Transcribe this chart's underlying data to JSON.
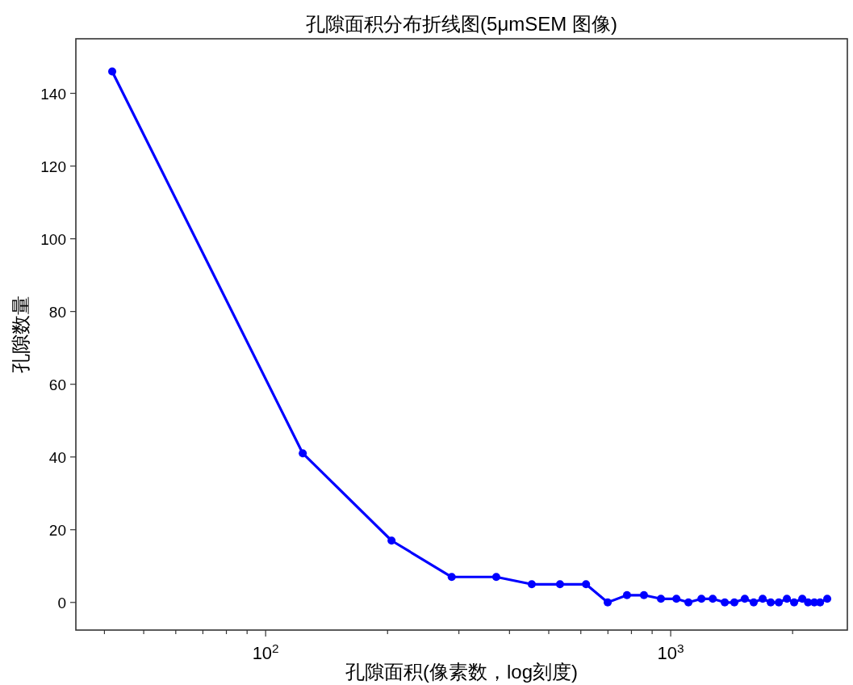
{
  "chart_data": {
    "type": "line",
    "title": "孔隙面积分布折线图(5μmSEM 图像)",
    "xlabel": "孔隙面积(像素数，log刻度)",
    "ylabel": "孔隙数量",
    "log": "x",
    "marker": "circle",
    "line_style": "solid",
    "grid": false,
    "xlim": [
      34,
      2730
    ],
    "ylim": [
      -7.6,
      155
    ],
    "xticks": [
      {
        "value": 40,
        "label": null
      },
      {
        "value": 50,
        "label": null
      },
      {
        "value": 60,
        "label": null
      },
      {
        "value": 70,
        "label": null
      },
      {
        "value": 80,
        "label": null
      },
      {
        "value": 90,
        "label": null
      },
      {
        "value": 100,
        "label": "10$^{2}$"
      },
      {
        "value": 200,
        "label": null
      },
      {
        "value": 300,
        "label": null
      },
      {
        "value": 400,
        "label": null
      },
      {
        "value": 500,
        "label": null
      },
      {
        "value": 600,
        "label": null
      },
      {
        "value": 700,
        "label": null
      },
      {
        "value": 800,
        "label": null
      },
      {
        "value": 900,
        "label": null
      },
      {
        "value": 1000,
        "label": "10$^{3}$"
      },
      {
        "value": 2000,
        "label": null
      }
    ],
    "yticks": [
      0,
      20,
      40,
      60,
      80,
      100,
      120,
      140
    ],
    "x": [
      41.8,
      123.5,
      204.6,
      288,
      371,
      454,
      533,
      618,
      699,
      780,
      859,
      946,
      1033,
      1106,
      1191,
      1270,
      1360,
      1436,
      1524,
      1603,
      1687,
      1766,
      1849,
      1936,
      2017,
      2113,
      2183,
      2263,
      2338,
      2435
    ],
    "series": [
      {
        "color": "#0000ff",
        "values": [
          146,
          41,
          17,
          7,
          7,
          5,
          5,
          5,
          0,
          2,
          2,
          1,
          1,
          0,
          1,
          1,
          0,
          0,
          1,
          0,
          1,
          0,
          0,
          1,
          0,
          1,
          0,
          0,
          0,
          1
        ]
      }
    ]
  }
}
